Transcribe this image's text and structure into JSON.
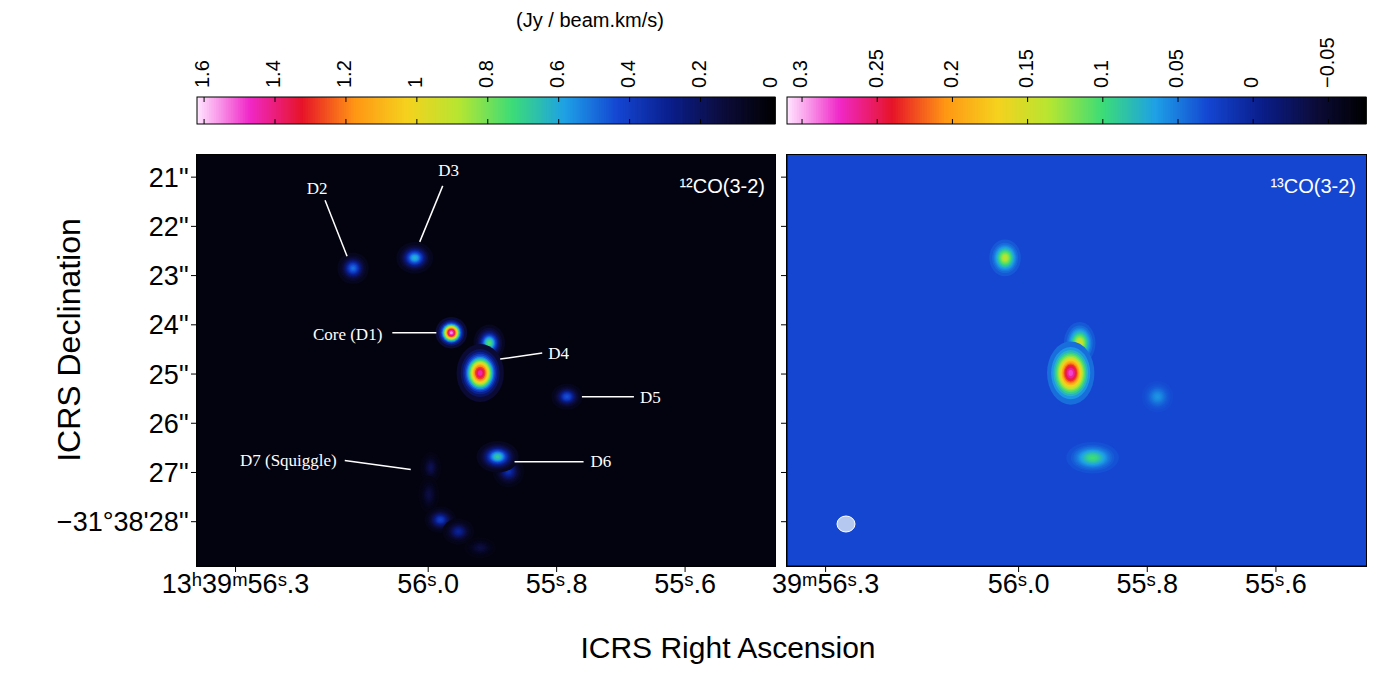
{
  "figure": {
    "colorbar_title": "(Jy / beam.km/s)",
    "xlabel": "ICRS Right Ascension",
    "ylabel": "ICRS Declination"
  },
  "chart_data": [
    {
      "type": "heatmap",
      "title": "¹²CO(3-2)",
      "colors": [
        "#000000",
        "#0c0c3c",
        "#0a1e8c",
        "#1446d2",
        "#1ea0e6",
        "#3cdc78",
        "#b4e632",
        "#f5d21e",
        "#ff9614",
        "#e61428",
        "#f028c8",
        "#ffe6ff"
      ],
      "xlim": [
        56.36,
        55.46
      ],
      "ylim": [
        28.9,
        20.55
      ],
      "xticks": [
        {
          "value": 56.3,
          "label": "13ʰ39ᵐ56ˢ.3"
        },
        {
          "value": 56.0,
          "label": "56ˢ.0"
        },
        {
          "value": 55.8,
          "label": "55ˢ.8"
        },
        {
          "value": 55.6,
          "label": "55ˢ.6"
        }
      ],
      "yticks": [
        {
          "value": 21,
          "label": "21''"
        },
        {
          "value": 22,
          "label": "22''"
        },
        {
          "value": 23,
          "label": "23''"
        },
        {
          "value": 24,
          "label": "24''"
        },
        {
          "value": 25,
          "label": "25''"
        },
        {
          "value": 26,
          "label": "26''"
        },
        {
          "value": 27,
          "label": "27''"
        },
        {
          "value": 28,
          "label": "−31°38'28''"
        }
      ],
      "colorbar": {
        "lim": [
          1.62,
          -0.01
        ],
        "ticks": [
          1.6,
          1.4,
          1.2,
          1,
          0.8,
          0.6,
          0.4,
          0.2,
          0
        ]
      },
      "background": 0.03,
      "sources": [
        {
          "x": 56.117,
          "y": 22.85,
          "value": 0.5,
          "label": "D2"
        },
        {
          "x": 56.021,
          "y": 22.64,
          "value": 0.62,
          "label": "D3"
        },
        {
          "x": 55.964,
          "y": 24.16,
          "value": 1.55,
          "label": "Core (D1)"
        },
        {
          "x": 55.905,
          "y": 24.37,
          "value": 0.75
        },
        {
          "x": 55.919,
          "y": 24.98,
          "value": 1.45,
          "label": "D4"
        },
        {
          "x": 55.784,
          "y": 25.46,
          "value": 0.45,
          "label": "D5"
        },
        {
          "x": 55.875,
          "y": 26.98,
          "value": 0.35
        },
        {
          "x": 55.892,
          "y": 26.68,
          "value": 0.68,
          "label": "D6"
        },
        {
          "x": 55.996,
          "y": 26.9,
          "value": 0.18,
          "label": "D7 (Squiggle)"
        },
        {
          "x": 55.999,
          "y": 27.45,
          "value": 0.15
        },
        {
          "x": 55.981,
          "y": 27.96,
          "value": 0.4
        },
        {
          "x": 55.953,
          "y": 28.2,
          "value": 0.3
        },
        {
          "x": 55.919,
          "y": 28.53,
          "value": 0.15
        }
      ]
    },
    {
      "type": "heatmap",
      "title": "¹³CO(3-2)",
      "colors": [
        "#000000",
        "#0c0c3c",
        "#0a1e8c",
        "#1446d2",
        "#1ea0e6",
        "#3cdc78",
        "#b4e632",
        "#f5d21e",
        "#ff9614",
        "#e61428",
        "#f028c8",
        "#ffe6ff"
      ],
      "xlim": [
        56.36,
        55.46
      ],
      "ylim": [
        28.9,
        20.55
      ],
      "xticks": [
        {
          "value": 56.3,
          "label": "39ᵐ56ˢ.3"
        },
        {
          "value": 56.0,
          "label": "56ˢ.0"
        },
        {
          "value": 55.8,
          "label": "55ˢ.8"
        },
        {
          "value": 55.6,
          "label": "55ˢ.6"
        }
      ],
      "yticks": [
        21,
        22,
        23,
        24,
        25,
        26,
        27,
        28
      ],
      "tick_labels": "x",
      "colorbar": {
        "lim": [
          0.31,
          -0.075
        ],
        "ticks": [
          0.3,
          0.25,
          0.2,
          0.15,
          0.1,
          0.05,
          0,
          {
            "value": -0.05,
            "label": "−0.05"
          }
        ]
      },
      "background": 0.03,
      "sources": [
        {
          "x": 56.021,
          "y": 22.64,
          "value": 0.14
        },
        {
          "x": 55.784,
          "y": 25.46,
          "value": 0.06
        },
        {
          "x": 55.885,
          "y": 26.7,
          "value": 0.1
        },
        {
          "x": 55.905,
          "y": 24.37,
          "value": 0.15
        },
        {
          "x": 55.919,
          "y": 24.98,
          "value": 0.28
        }
      ]
    }
  ]
}
